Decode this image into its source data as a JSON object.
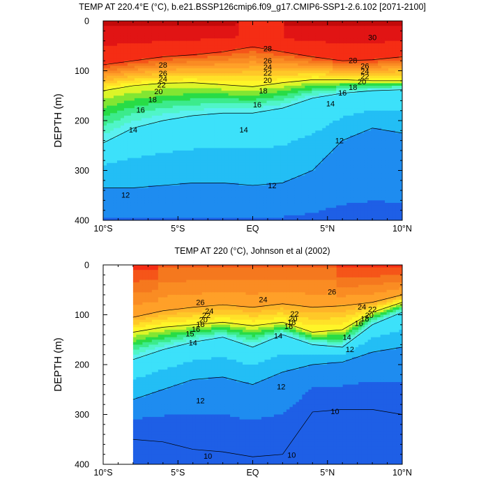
{
  "chart_data": [
    {
      "type": "contour",
      "title": "TEMP AT 220.4°E (°C), b.e21.BSSP126cmip6.f09_g17.CMIP6-SSP1-2.6.102 [2071-2100]",
      "xlabel": "",
      "ylabel": "DEPTH (m)",
      "x_ticks": [
        "10°S",
        "5°S",
        "EQ",
        "5°N",
        "10°N"
      ],
      "x_tick_lat": [
        -10,
        -5,
        0,
        5,
        10
      ],
      "y_ticks": [
        "0",
        "100",
        "200",
        "300",
        "400"
      ],
      "y_tick_values": [
        0,
        100,
        200,
        300,
        400
      ],
      "xlim": [
        -10,
        10
      ],
      "ylim": [
        400,
        0
      ],
      "data_xlim": [
        -10,
        10
      ],
      "levels": [
        10,
        11,
        12,
        13,
        14,
        15,
        16,
        17,
        18,
        19,
        20,
        21,
        22,
        23,
        24,
        25,
        26,
        27,
        28,
        29,
        30
      ],
      "isotherm_depths": {
        "lat": [
          -10,
          -8,
          -6,
          -4,
          -2,
          0,
          2,
          4,
          6,
          8,
          10
        ],
        "t28": [
          88,
          80,
          72,
          68,
          62,
          52,
          62,
          72,
          80,
          78,
          72
        ],
        "t20": [
          140,
          130,
          125,
          124,
          128,
          132,
          124,
          118,
          118,
          120,
          120
        ],
        "t14": [
          245,
          215,
          200,
          190,
          185,
          185,
          175,
          155,
          145,
          140,
          138
        ],
        "t12": [
          335,
          335,
          330,
          325,
          325,
          330,
          325,
          300,
          240,
          215,
          225
        ]
      },
      "contour_labels": [
        {
          "text": "30",
          "lat": 8.0,
          "depth": 33
        },
        {
          "text": "28",
          "lat": -6.0,
          "depth": 88
        },
        {
          "text": "26",
          "lat": -6.0,
          "depth": 105
        },
        {
          "text": "24",
          "lat": -6.0,
          "depth": 116
        },
        {
          "text": "22",
          "lat": -6.1,
          "depth": 128
        },
        {
          "text": "20",
          "lat": -6.3,
          "depth": 141
        },
        {
          "text": "18",
          "lat": -6.7,
          "depth": 157
        },
        {
          "text": "16",
          "lat": -7.5,
          "depth": 178
        },
        {
          "text": "14",
          "lat": -8.0,
          "depth": 218
        },
        {
          "text": "14",
          "lat": -0.6,
          "depth": 218
        },
        {
          "text": "12",
          "lat": -8.5,
          "depth": 349
        },
        {
          "text": "12",
          "lat": 1.3,
          "depth": 330
        },
        {
          "text": "12",
          "lat": 5.8,
          "depth": 240
        },
        {
          "text": "28",
          "lat": 1.0,
          "depth": 55
        },
        {
          "text": "26",
          "lat": 1.0,
          "depth": 80
        },
        {
          "text": "24",
          "lat": 1.0,
          "depth": 92
        },
        {
          "text": "22",
          "lat": 1.0,
          "depth": 104
        },
        {
          "text": "20",
          "lat": 1.0,
          "depth": 119
        },
        {
          "text": "18",
          "lat": 0.7,
          "depth": 140
        },
        {
          "text": "16",
          "lat": 0.3,
          "depth": 168
        },
        {
          "text": "14",
          "lat": 5.2,
          "depth": 166
        },
        {
          "text": "28",
          "lat": 6.7,
          "depth": 79
        },
        {
          "text": "26",
          "lat": 7.5,
          "depth": 90
        },
        {
          "text": "24",
          "lat": 7.5,
          "depth": 101
        },
        {
          "text": "22",
          "lat": 7.5,
          "depth": 111
        },
        {
          "text": "20",
          "lat": 7.3,
          "depth": 122
        },
        {
          "text": "18",
          "lat": 6.7,
          "depth": 133
        },
        {
          "text": "16",
          "lat": 6.0,
          "depth": 144
        }
      ]
    },
    {
      "type": "contour",
      "title": "TEMP AT 220 (°C), Johnson et al (2002)",
      "xlabel": "",
      "ylabel": "DEPTH (m)",
      "x_ticks": [
        "10°S",
        "5°S",
        "EQ",
        "5°N",
        "10°N"
      ],
      "x_tick_lat": [
        -10,
        -5,
        0,
        5,
        10
      ],
      "y_ticks": [
        "0",
        "100",
        "200",
        "300",
        "400"
      ],
      "y_tick_values": [
        0,
        100,
        200,
        300,
        400
      ],
      "xlim": [
        -10,
        10
      ],
      "ylim": [
        400,
        0
      ],
      "data_xlim": [
        -8,
        10
      ],
      "levels": [
        10,
        11,
        12,
        13,
        14,
        15,
        16,
        17,
        18,
        19,
        20,
        21,
        22,
        23,
        24,
        25,
        26,
        27,
        28
      ],
      "isotherm_depths": {
        "lat": [
          -8,
          -6,
          -4,
          -2,
          0,
          2,
          4,
          6,
          8,
          10
        ],
        "t24": [
          105,
          92,
          85,
          80,
          85,
          78,
          85,
          82,
          75,
          60
        ],
        "t20": [
          135,
          125,
          120,
          115,
          122,
          115,
          135,
          130,
          95,
          75
        ],
        "t14": [
          190,
          170,
          155,
          145,
          165,
          140,
          160,
          165,
          120,
          95
        ],
        "t12": [
          270,
          250,
          230,
          225,
          240,
          215,
          200,
          195,
          175,
          165
        ],
        "t10": [
          350,
          355,
          370,
          375,
          385,
          380,
          295,
          290,
          290,
          300
        ]
      },
      "contour_labels": [
        {
          "text": "26",
          "lat": -3.5,
          "depth": 75
        },
        {
          "text": "24",
          "lat": -2.9,
          "depth": 92
        },
        {
          "text": "22",
          "lat": -3.1,
          "depth": 101
        },
        {
          "text": "20",
          "lat": -3.3,
          "depth": 110
        },
        {
          "text": "18",
          "lat": -3.5,
          "depth": 119
        },
        {
          "text": "16",
          "lat": -3.8,
          "depth": 129
        },
        {
          "text": "15",
          "lat": -4.2,
          "depth": 138
        },
        {
          "text": "14",
          "lat": -4.0,
          "depth": 156
        },
        {
          "text": "12",
          "lat": -3.5,
          "depth": 272
        },
        {
          "text": "24",
          "lat": 0.7,
          "depth": 69
        },
        {
          "text": "22",
          "lat": 2.8,
          "depth": 98
        },
        {
          "text": "20",
          "lat": 2.7,
          "depth": 108
        },
        {
          "text": "18",
          "lat": 2.6,
          "depth": 115
        },
        {
          "text": "16",
          "lat": 2.4,
          "depth": 123
        },
        {
          "text": "14",
          "lat": 1.7,
          "depth": 142
        },
        {
          "text": "12",
          "lat": 1.9,
          "depth": 244
        },
        {
          "text": "26",
          "lat": 5.3,
          "depth": 54
        },
        {
          "text": "24",
          "lat": 7.3,
          "depth": 84
        },
        {
          "text": "22",
          "lat": 8.0,
          "depth": 89
        },
        {
          "text": "20",
          "lat": 7.8,
          "depth": 101
        },
        {
          "text": "18",
          "lat": 7.5,
          "depth": 108
        },
        {
          "text": "16",
          "lat": 7.1,
          "depth": 117
        },
        {
          "text": "14",
          "lat": 6.3,
          "depth": 145
        },
        {
          "text": "12",
          "lat": 6.5,
          "depth": 169
        },
        {
          "text": "10",
          "lat": 5.5,
          "depth": 294
        },
        {
          "text": "10",
          "lat": -3.0,
          "depth": 383
        },
        {
          "text": "10",
          "lat": 2.6,
          "depth": 381
        }
      ]
    }
  ]
}
